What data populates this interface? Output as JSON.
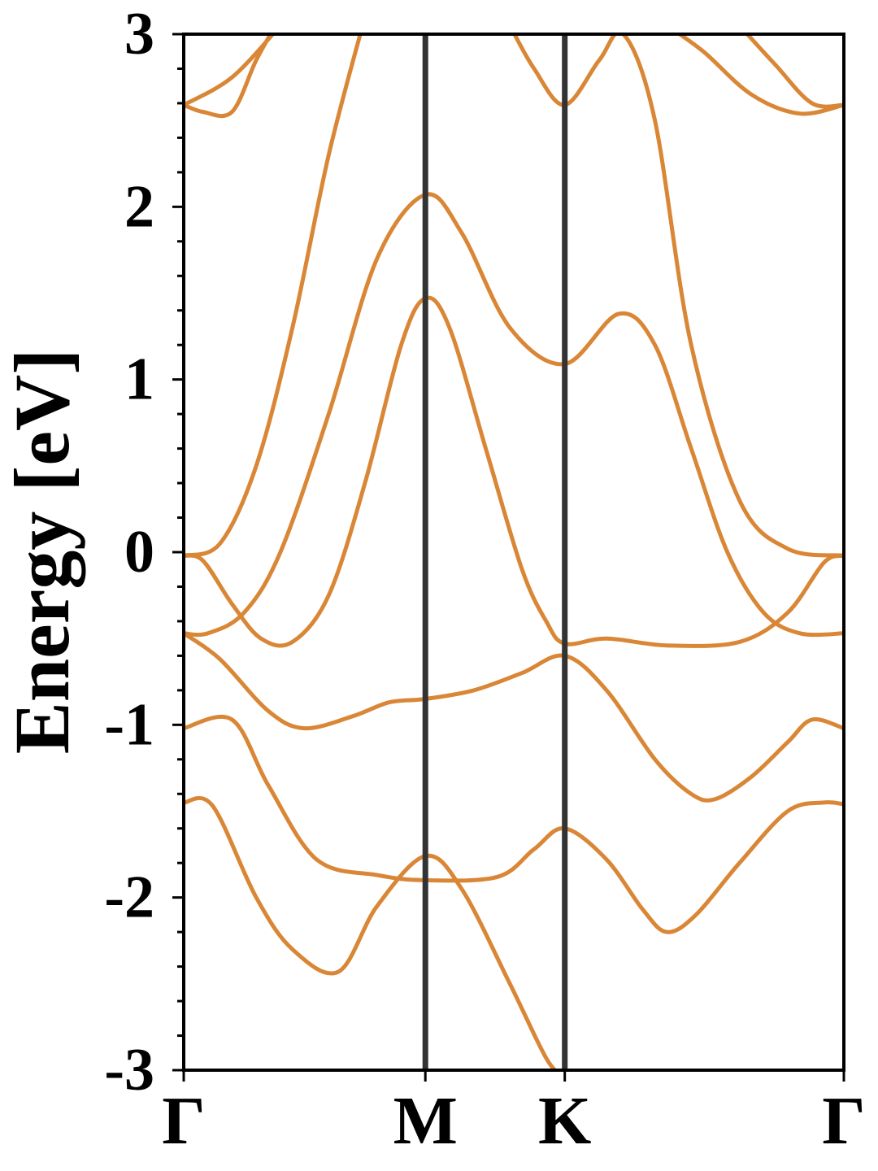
{
  "chart_data": {
    "type": "line",
    "title": "",
    "xlabel": "",
    "ylabel": "Energy [eV]",
    "ylim": [
      -3,
      3
    ],
    "y_ticks": [
      -3,
      -2,
      -1,
      0,
      1,
      2,
      3
    ],
    "y_tick_labels": [
      "-3",
      "-2",
      "-1",
      "0",
      "1",
      "2",
      "3"
    ],
    "y_minor_step": 0.2,
    "k_points": [
      {
        "label": "Γ",
        "x": 0
      },
      {
        "label": "M",
        "x": 1.0
      },
      {
        "label": "K",
        "x": 1.577
      },
      {
        "label": "Γ",
        "x": 2.732
      }
    ],
    "xlim": [
      0,
      2.732
    ],
    "grid": false,
    "legend": "none",
    "colors": {
      "bands": "#D98736",
      "kpoint_lines": "#333333",
      "axes": "#000000"
    },
    "series": [
      {
        "values": [
          [
            0,
            -1.45
          ],
          [
            0.12,
            -1.47
          ],
          [
            0.3,
            -2.0
          ],
          [
            0.45,
            -2.3
          ],
          [
            0.64,
            -2.43
          ],
          [
            0.8,
            -2.05
          ],
          [
            1.0,
            -1.76
          ],
          [
            1.15,
            -1.95
          ],
          [
            1.35,
            -2.5
          ],
          [
            1.5,
            -2.93
          ],
          [
            1.577,
            -3.05
          ]
        ]
      },
      {
        "values": [
          [
            0,
            -1.02
          ],
          [
            0.2,
            -0.97
          ],
          [
            0.35,
            -1.35
          ],
          [
            0.55,
            -1.78
          ],
          [
            0.8,
            -1.87
          ],
          [
            1.0,
            -1.9
          ],
          [
            1.3,
            -1.88
          ],
          [
            1.45,
            -1.72
          ],
          [
            1.577,
            -1.6
          ],
          [
            1.75,
            -1.78
          ],
          [
            1.9,
            -2.07
          ],
          [
            2.0,
            -2.2
          ],
          [
            2.12,
            -2.1
          ],
          [
            2.3,
            -1.8
          ],
          [
            2.5,
            -1.5
          ],
          [
            2.65,
            -1.45
          ],
          [
            2.732,
            -1.46
          ]
        ]
      },
      {
        "values": [
          [
            0,
            -0.47
          ],
          [
            0.15,
            -0.62
          ],
          [
            0.35,
            -0.92
          ],
          [
            0.5,
            -1.02
          ],
          [
            0.7,
            -0.95
          ],
          [
            0.85,
            -0.87
          ],
          [
            1.0,
            -0.85
          ],
          [
            1.2,
            -0.8
          ],
          [
            1.4,
            -0.7
          ],
          [
            1.577,
            -0.6
          ],
          [
            1.75,
            -0.8
          ],
          [
            1.95,
            -1.2
          ],
          [
            2.1,
            -1.4
          ],
          [
            2.2,
            -1.43
          ],
          [
            2.35,
            -1.3
          ],
          [
            2.5,
            -1.1
          ],
          [
            2.6,
            -0.97
          ],
          [
            2.732,
            -1.02
          ]
        ]
      },
      {
        "values": [
          [
            0,
            -0.02
          ],
          [
            0.08,
            -0.05
          ],
          [
            0.2,
            -0.3
          ],
          [
            0.32,
            -0.5
          ],
          [
            0.45,
            -0.52
          ],
          [
            0.6,
            -0.25
          ],
          [
            0.75,
            0.4
          ],
          [
            0.9,
            1.2
          ],
          [
            1.0,
            1.47
          ],
          [
            1.1,
            1.3
          ],
          [
            1.25,
            0.6
          ],
          [
            1.4,
            -0.1
          ],
          [
            1.5,
            -0.4
          ],
          [
            1.577,
            -0.53
          ],
          [
            1.75,
            -0.5
          ],
          [
            2.0,
            -0.54
          ],
          [
            2.3,
            -0.52
          ],
          [
            2.5,
            -0.35
          ],
          [
            2.65,
            -0.06
          ],
          [
            2.732,
            -0.02
          ]
        ]
      },
      {
        "values": [
          [
            0,
            -0.47
          ],
          [
            0.1,
            -0.47
          ],
          [
            0.25,
            -0.35
          ],
          [
            0.4,
            0.0
          ],
          [
            0.6,
            0.8
          ],
          [
            0.8,
            1.7
          ],
          [
            1.0,
            2.07
          ],
          [
            1.15,
            1.85
          ],
          [
            1.35,
            1.3
          ],
          [
            1.577,
            1.09
          ],
          [
            1.8,
            1.38
          ],
          [
            1.95,
            1.2
          ],
          [
            2.1,
            0.6
          ],
          [
            2.25,
            0.0
          ],
          [
            2.4,
            -0.35
          ],
          [
            2.55,
            -0.47
          ],
          [
            2.732,
            -0.47
          ]
        ]
      },
      {
        "values": [
          [
            0,
            -0.02
          ],
          [
            0.15,
            0.05
          ],
          [
            0.3,
            0.5
          ],
          [
            0.45,
            1.3
          ],
          [
            0.6,
            2.3
          ],
          [
            0.75,
            3.1
          ]
        ]
      },
      {
        "values": [
          [
            1.35,
            3.05
          ],
          [
            1.45,
            2.8
          ],
          [
            1.577,
            2.59
          ],
          [
            1.72,
            2.85
          ],
          [
            1.82,
            3.0
          ],
          [
            1.95,
            2.5
          ],
          [
            2.1,
            1.2
          ],
          [
            2.3,
            0.3
          ],
          [
            2.5,
            0.02
          ],
          [
            2.732,
            -0.02
          ]
        ]
      },
      {
        "values": [
          [
            0,
            2.59
          ],
          [
            0.08,
            2.55
          ],
          [
            0.2,
            2.55
          ],
          [
            0.3,
            2.85
          ],
          [
            0.38,
            3.05
          ]
        ]
      },
      {
        "values": [
          [
            0,
            2.59
          ],
          [
            0.2,
            2.75
          ],
          [
            0.4,
            3.05
          ]
        ]
      },
      {
        "values": [
          [
            2.3,
            3.05
          ],
          [
            2.45,
            2.82
          ],
          [
            2.6,
            2.6
          ],
          [
            2.732,
            2.59
          ]
        ]
      },
      {
        "values": [
          [
            2.0,
            3.05
          ],
          [
            2.15,
            2.9
          ],
          [
            2.35,
            2.65
          ],
          [
            2.55,
            2.54
          ],
          [
            2.732,
            2.59
          ]
        ]
      }
    ]
  }
}
